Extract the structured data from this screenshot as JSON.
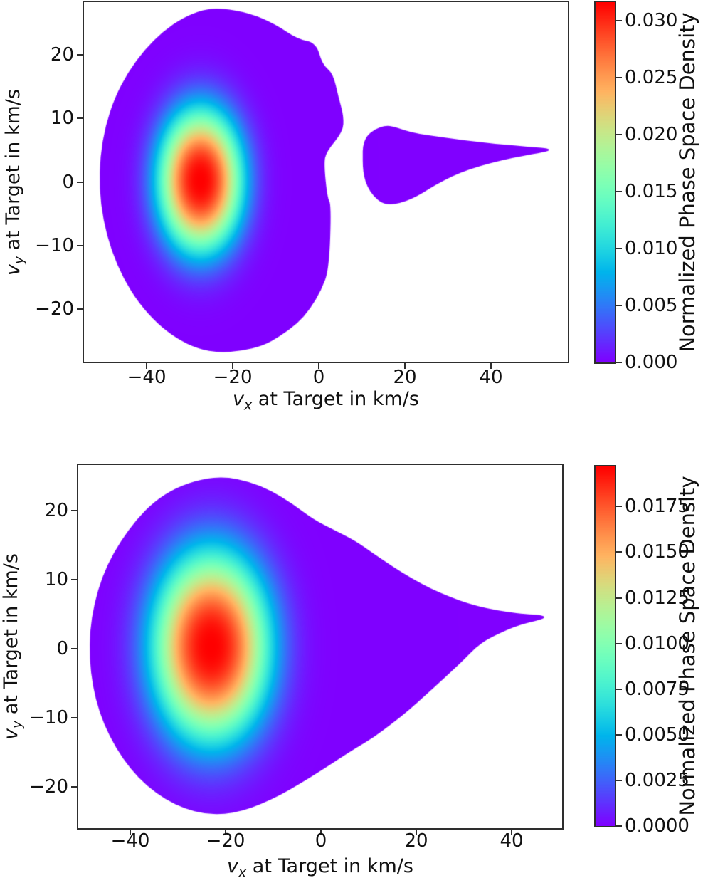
{
  "figure": {
    "background": "#ffffff",
    "low_density_color": "#8000ff",
    "high_density_color": "#ff0000",
    "colormap": "rainbow"
  },
  "chart_data": [
    {
      "type": "heatmap",
      "title": "",
      "xlabel": {
        "var": "v",
        "sub": "x",
        "rest": " at Target in km/s",
        "plain": "vx at Target in km/s"
      },
      "ylabel": {
        "var": "v",
        "sub": "y",
        "rest": " at Target in km/s",
        "plain": "vy at Target in km/s"
      },
      "colorbar_label": "Normalized Phase Space Density",
      "xlim": [
        -54.56,
        57.85
      ],
      "ylim": [
        -28.31,
        28.31
      ],
      "xticks": [
        -40,
        -20,
        0,
        20,
        40
      ],
      "xtick_labels": [
        "−40",
        "−20",
        "0",
        "20",
        "40"
      ],
      "yticks": [
        -20,
        -10,
        0,
        10,
        20
      ],
      "ytick_labels": [
        "−20",
        "−10",
        "0",
        "10",
        "20"
      ],
      "grid": false,
      "colorbar": {
        "vmin": 0.0,
        "vmax": 0.0316,
        "ticks": [
          0.0,
          0.005,
          0.01,
          0.015,
          0.02,
          0.025,
          0.03
        ],
        "tick_labels": [
          "0.000",
          "0.005",
          "0.010",
          "0.015",
          "0.020",
          "0.025",
          "0.030"
        ]
      },
      "density": {
        "center": [
          -27.5,
          0.2
        ],
        "sigma": [
          6.8,
          7.8
        ],
        "exponent": 1.25,
        "peak_value": 0.0316
      },
      "support_polygons": [
        [
          [
            -23,
            27.4
          ],
          [
            -16,
            26.6
          ],
          [
            -10,
            24.8
          ],
          [
            -5,
            22.5
          ],
          [
            -0.6,
            21.9
          ],
          [
            0.8,
            18.5
          ],
          [
            3.3,
            17.1
          ],
          [
            4.6,
            13.3
          ],
          [
            5.8,
            10.3
          ],
          [
            5.6,
            7.9
          ],
          [
            1.7,
            4.7
          ],
          [
            1.2,
            2.8
          ],
          [
            2.0,
            -2.5
          ],
          [
            2.9,
            -3.6
          ],
          [
            2.4,
            -13.7
          ],
          [
            0.6,
            -17.0
          ],
          [
            -2,
            -20
          ],
          [
            -5,
            -22.3
          ],
          [
            -9,
            -24.3
          ],
          [
            -13,
            -25.8
          ],
          [
            -18,
            -26.6
          ],
          [
            -23,
            -26.9
          ],
          [
            -28,
            -26.3
          ],
          [
            -33,
            -24.7
          ],
          [
            -37.5,
            -22.3
          ],
          [
            -41.8,
            -19.1
          ],
          [
            -45.4,
            -15.2
          ],
          [
            -48.2,
            -10.8
          ],
          [
            -50.1,
            -6
          ],
          [
            -51,
            -1
          ],
          [
            -50.8,
            4
          ],
          [
            -49.6,
            8.8
          ],
          [
            -47.4,
            13.3
          ],
          [
            -44.3,
            17.3
          ],
          [
            -40.5,
            20.8
          ],
          [
            -36.2,
            23.7
          ],
          [
            -31.5,
            25.9
          ],
          [
            -27,
            27.1
          ]
        ],
        [
          [
            10.2,
            5.5
          ],
          [
            11,
            7.2
          ],
          [
            13,
            8.3
          ],
          [
            15.5,
            8.9
          ],
          [
            17.5,
            8.7
          ],
          [
            20,
            8.1
          ],
          [
            23,
            7.6
          ],
          [
            27,
            7.2
          ],
          [
            31,
            6.8
          ],
          [
            36,
            6.4
          ],
          [
            41,
            6.0
          ],
          [
            46,
            5.7
          ],
          [
            50,
            5.45
          ],
          [
            53.3,
            5.3
          ],
          [
            53.7,
            4.9
          ],
          [
            50,
            4.4
          ],
          [
            45,
            3.8
          ],
          [
            40,
            3.0
          ],
          [
            35,
            2.0
          ],
          [
            31,
            0.9
          ],
          [
            27,
            -0.5
          ],
          [
            24,
            -1.8
          ],
          [
            21.5,
            -2.7
          ],
          [
            19,
            -3.3
          ],
          [
            16.5,
            -3.6
          ],
          [
            14.5,
            -3.3
          ],
          [
            12.7,
            -2.2
          ],
          [
            11.3,
            -0.8
          ],
          [
            10.5,
            0.8
          ],
          [
            10.2,
            2.5
          ],
          [
            10.2,
            4.2
          ]
        ]
      ]
    },
    {
      "type": "heatmap",
      "title": "",
      "xlabel": {
        "var": "v",
        "sub": "x",
        "rest": " at Target in km/s",
        "plain": "vx at Target in km/s"
      },
      "ylabel": {
        "var": "v",
        "sub": "y",
        "rest": " at Target in km/s",
        "plain": "vy at Target in km/s"
      },
      "colorbar_label": "Normalized Phase Space Density",
      "xlim": [
        -50.9,
        50.6
      ],
      "ylim": [
        -26.0,
        26.6
      ],
      "xticks": [
        -40,
        -20,
        0,
        20,
        40
      ],
      "xtick_labels": [
        "−40",
        "−20",
        "0",
        "20",
        "40"
      ],
      "yticks": [
        -20,
        -10,
        0,
        10,
        20
      ],
      "ytick_labels": [
        "−20",
        "−10",
        "0",
        "10",
        "20"
      ],
      "grid": false,
      "colorbar": {
        "vmin": 0.0,
        "vmax": 0.0197,
        "ticks": [
          0.0,
          0.0025,
          0.005,
          0.0075,
          0.01,
          0.0125,
          0.015,
          0.0175
        ],
        "tick_labels": [
          "0.0000",
          "0.0025",
          "0.0050",
          "0.0075",
          "0.0100",
          "0.0125",
          "0.0150",
          "0.0175"
        ]
      },
      "density": {
        "center": [
          -23.0,
          0.3
        ],
        "sigma": [
          8.5,
          9.5
        ],
        "exponent": 1.25,
        "peak_value": 0.0197
      },
      "support_polygons": [
        [
          [
            -25,
            24.6
          ],
          [
            -20,
            24.9
          ],
          [
            -15,
            24.2
          ],
          [
            -10.5,
            22.9
          ],
          [
            -6,
            21.0
          ],
          [
            -1.5,
            18.7
          ],
          [
            2.5,
            17.3
          ],
          [
            7.3,
            15.6
          ],
          [
            11,
            13.8
          ],
          [
            15,
            11.9
          ],
          [
            19,
            10.2
          ],
          [
            23,
            8.7
          ],
          [
            27,
            7.5
          ],
          [
            31,
            6.5
          ],
          [
            35,
            5.8
          ],
          [
            39,
            5.3
          ],
          [
            43,
            5.0
          ],
          [
            46,
            4.9
          ],
          [
            47.3,
            4.5
          ],
          [
            45,
            4.0
          ],
          [
            42,
            3.5
          ],
          [
            39,
            2.7
          ],
          [
            35,
            1.4
          ],
          [
            32.5,
            0.2
          ],
          [
            30,
            -1.6
          ],
          [
            26,
            -4.2
          ],
          [
            22,
            -6.7
          ],
          [
            18.5,
            -8.9
          ],
          [
            14.8,
            -10.9
          ],
          [
            11,
            -12.9
          ],
          [
            7.3,
            -14.4
          ],
          [
            3.5,
            -16.1
          ],
          [
            -0.5,
            -17.9
          ],
          [
            -4.5,
            -19.6
          ],
          [
            -8.5,
            -21.2
          ],
          [
            -12.5,
            -22.5
          ],
          [
            -16.5,
            -23.5
          ],
          [
            -20.5,
            -24.0
          ],
          [
            -24.5,
            -23.9
          ],
          [
            -28.5,
            -23.2
          ],
          [
            -32.5,
            -21.9
          ],
          [
            -36.5,
            -19.9
          ],
          [
            -40,
            -17.4
          ],
          [
            -43,
            -14.4
          ],
          [
            -45.5,
            -11.0
          ],
          [
            -47.3,
            -7.3
          ],
          [
            -48.3,
            -3.4
          ],
          [
            -48.6,
            0.6
          ],
          [
            -48.1,
            4.6
          ],
          [
            -46.8,
            8.5
          ],
          [
            -44.8,
            12.2
          ],
          [
            -42,
            15.6
          ],
          [
            -38.7,
            18.7
          ],
          [
            -35,
            21.3
          ],
          [
            -30.5,
            23.3
          ]
        ]
      ]
    }
  ]
}
